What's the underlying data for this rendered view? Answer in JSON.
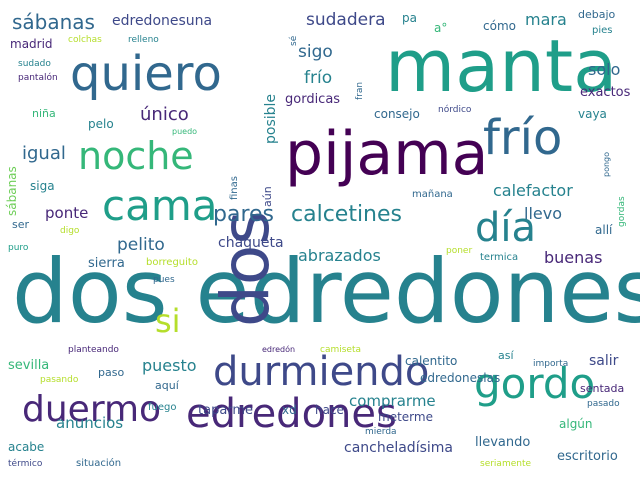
{
  "palette": {
    "dark_purple": "#440154",
    "purple": "#482878",
    "indigo": "#3e4989",
    "blue": "#31688e",
    "teal": "#26828e",
    "green_teal": "#1f9e89",
    "green": "#35b779",
    "light_green": "#6ece58",
    "yellow_green": "#b5de2b",
    "yellow": "#fde725"
  },
  "words": [
    "dos edredones",
    "manta",
    "pijama",
    "dos",
    "quiero",
    "frío",
    "noche",
    "cama",
    "durmiendo",
    "edredones",
    "gordo",
    "duermo",
    "día",
    "pares",
    "calcetines",
    "si",
    "sábanas",
    "edredonesuna",
    "madrid",
    "colchas",
    "relleno",
    "sudado",
    "pantalón",
    "niña",
    "pelo",
    "único",
    "sudadera",
    "sigo",
    "frío",
    "gordicas",
    "consejo",
    "nórdico",
    "mara",
    "solo",
    "exactos",
    "debajo",
    "pies",
    "igual",
    "siga",
    "vaya",
    "calefactor",
    "ponte",
    "pelito",
    "chaqueta",
    "abrazados",
    "llevo",
    "buenas",
    "allí",
    "mañana",
    "sierra",
    "borreguito",
    "pues",
    "poner",
    "termica",
    "ser",
    "digo",
    "puro",
    "sevilla",
    "pasando",
    "planteando",
    "paso",
    "puesto",
    "aquí",
    "fuego",
    "taparme",
    "xd",
    "hace",
    "comprarme",
    "meterme",
    "calentito",
    "así",
    "importa",
    "salir",
    "sentada",
    "pasado",
    "edredoneslas",
    "anuncios",
    "acabe",
    "térmico",
    "situación",
    "cancheladísima",
    "llevando",
    "algún",
    "escritorio",
    "seriamente",
    "mierda",
    "edredón",
    "camiseta",
    "posible",
    "aún",
    "finas",
    "pa",
    "a°",
    "cómo",
    "sé",
    "fran",
    "puedo",
    "pongo",
    "gordas",
    "sábanas"
  ]
}
